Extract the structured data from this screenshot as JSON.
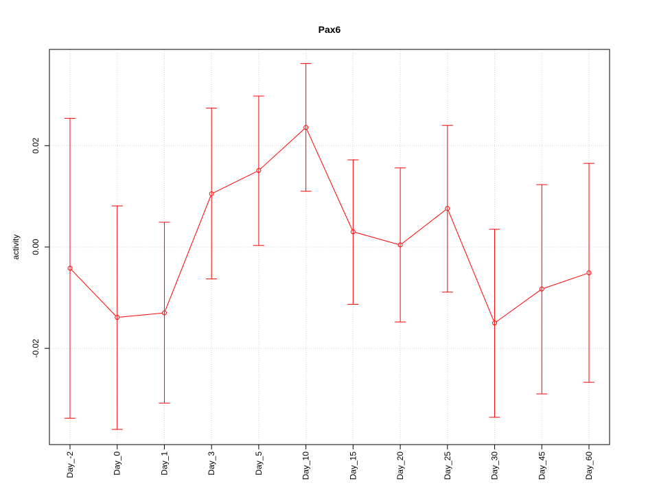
{
  "chart_data": {
    "type": "line",
    "title": "Pax6",
    "xlabel": "",
    "ylabel": "activity",
    "categories": [
      "Day_-2",
      "Day_0",
      "Day_1",
      "Day_3",
      "Day_5",
      "Day_10",
      "Day_15",
      "Day_20",
      "Day_25",
      "Day_30",
      "Day_45",
      "Day_60"
    ],
    "series": [
      {
        "color": "#ff0000",
        "values": [
          -0.0042,
          -0.0139,
          -0.013,
          0.0105,
          0.0151,
          0.0236,
          0.003,
          0.0004,
          0.0076,
          -0.015,
          -0.0083,
          -0.0051
        ],
        "upper": [
          0.0254,
          0.0081,
          0.0049,
          0.0274,
          0.0298,
          0.0362,
          0.0172,
          0.0156,
          0.024,
          0.0035,
          0.0123,
          0.0165
        ],
        "lower": [
          -0.0338,
          -0.036,
          -0.0308,
          -0.0063,
          0.0003,
          0.011,
          -0.0113,
          -0.0148,
          -0.0089,
          -0.0336,
          -0.029,
          -0.0267
        ]
      }
    ],
    "yticks": [
      -0.02,
      0.0,
      0.02
    ],
    "ytick_labels": [
      "-0.02",
      "0.00",
      "0.02"
    ],
    "ylim": [
      -0.039,
      0.039
    ],
    "grid": true,
    "grid_color": "#d3d3d3"
  }
}
